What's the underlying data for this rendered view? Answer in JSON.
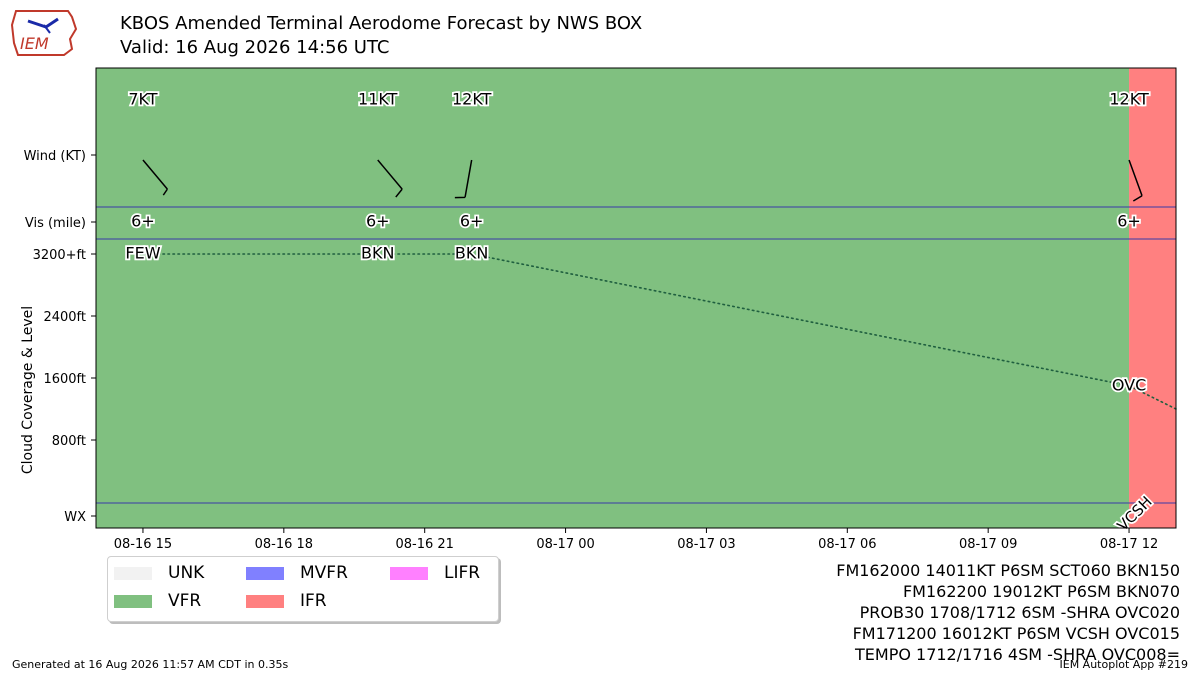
{
  "header": {
    "title_line1": "KBOS Amended Terminal Aerodome Forecast by NWS BOX",
    "title_line2": "Valid: 16 Aug 2026 14:56 UTC",
    "logo_text": "IEM"
  },
  "chart_data": {
    "type": "timeline",
    "ylabel": "Cloud Coverage & Level",
    "row_labels": {
      "wind": "Wind (KT)",
      "vis": "Vis (mile)",
      "wx": "WX"
    },
    "y_ticks": [
      {
        "value": 800,
        "label": "800ft"
      },
      {
        "value": 1600,
        "label": "1600ft"
      },
      {
        "value": 2400,
        "label": "2400ft"
      },
      {
        "value": 3200,
        "label": "3200+ft"
      }
    ],
    "x_range": [
      "2026-08-16 14:00",
      "2026-08-17 13:00"
    ],
    "x_ticks": [
      {
        "time": "2026-08-16 15:00",
        "label": "08-16 15"
      },
      {
        "time": "2026-08-16 18:00",
        "label": "08-16 18"
      },
      {
        "time": "2026-08-16 21:00",
        "label": "08-16 21"
      },
      {
        "time": "2026-08-17 00:00",
        "label": "08-17 00"
      },
      {
        "time": "2026-08-17 03:00",
        "label": "08-17 03"
      },
      {
        "time": "2026-08-17 06:00",
        "label": "08-17 06"
      },
      {
        "time": "2026-08-17 09:00",
        "label": "08-17 09"
      },
      {
        "time": "2026-08-17 12:00",
        "label": "08-17 12"
      }
    ],
    "category_spans": [
      {
        "start": "2026-08-16 14:00",
        "end": "2026-08-17 12:00",
        "category": "VFR"
      },
      {
        "start": "2026-08-17 12:00",
        "end": "2026-08-17 13:00",
        "category": "IFR"
      }
    ],
    "forecasts": [
      {
        "time": "2026-08-16 15:00",
        "wind_dir": 140,
        "wind_kt": 7,
        "wind_label": "7KT",
        "vis_label": "6+",
        "cloud_label": "FEW",
        "cloud_level": 3200,
        "wx_label": ""
      },
      {
        "time": "2026-08-16 20:00",
        "wind_dir": 140,
        "wind_kt": 11,
        "wind_label": "11KT",
        "vis_label": "6+",
        "cloud_label": "BKN",
        "cloud_level": 3200,
        "wx_label": ""
      },
      {
        "time": "2026-08-16 22:00",
        "wind_dir": 190,
        "wind_kt": 12,
        "wind_label": "12KT",
        "vis_label": "6+",
        "cloud_label": "BKN",
        "cloud_level": 3200,
        "wx_label": ""
      },
      {
        "time": "2026-08-17 12:00",
        "wind_dir": 160,
        "wind_kt": 12,
        "wind_label": "12KT",
        "vis_label": "6+",
        "cloud_label": "OVC",
        "cloud_level": 1500,
        "wx_label": "VCSH"
      }
    ],
    "cloud_line_end": {
      "time": "2026-08-17 13:00",
      "level": 1200
    },
    "legend": [
      {
        "label": "UNK",
        "color": "#f2f2f2"
      },
      {
        "label": "VFR",
        "color": "#80c080"
      },
      {
        "label": "MVFR",
        "color": "#8080ff"
      },
      {
        "label": "IFR",
        "color": "#ff8080"
      },
      {
        "label": "LIFR",
        "color": "#ff80ff"
      }
    ],
    "colors": {
      "VFR": "#80c080",
      "IFR": "#ff8080",
      "separator": "#3a3aa8",
      "cloud_line": "#1f5f3f"
    }
  },
  "taf_lines": [
    "FM162000 14011KT P6SM SCT060 BKN150",
    "FM162200 19012KT P6SM BKN070",
    "PROB30 1708/1712 6SM -SHRA OVC020",
    "FM171200 16012KT P6SM VCSH OVC015",
    "TEMPO 1712/1716 4SM -SHRA OVC008="
  ],
  "footer": {
    "generated": "Generated at 16 Aug 2026 11:57 AM CDT in 0.35s",
    "app": "IEM Autoplot App #219"
  }
}
